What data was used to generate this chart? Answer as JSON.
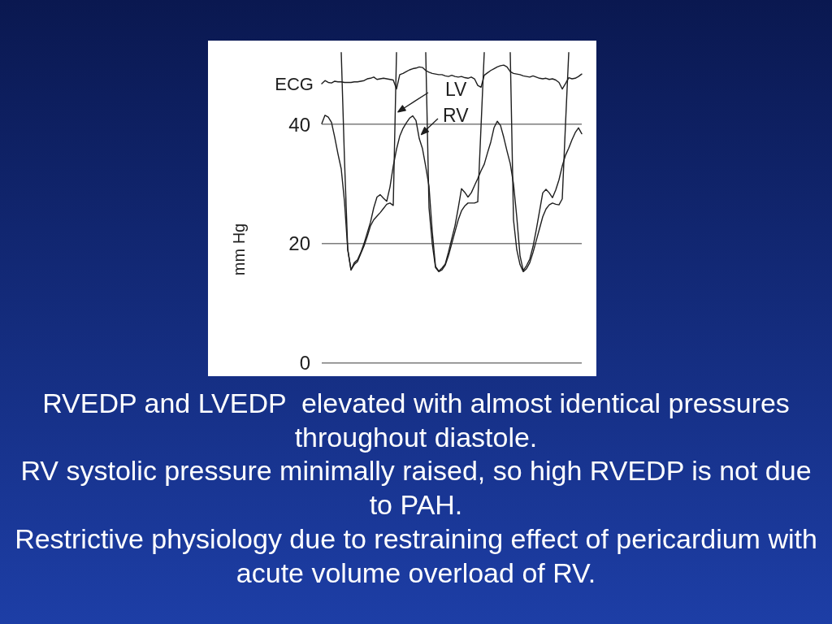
{
  "chart_data": {
    "type": "line",
    "ylabel": "mm Hg",
    "categories": [
      null,
      null,
      null,
      null,
      null,
      null,
      null,
      null,
      null,
      null,
      null,
      null,
      null,
      null,
      null,
      null,
      null,
      null,
      null,
      null,
      null,
      null,
      null,
      null,
      null,
      null,
      null,
      null,
      null,
      null,
      null,
      null,
      null,
      null,
      null,
      null,
      null,
      null,
      null,
      null,
      null,
      null,
      null,
      null,
      null,
      null,
      null,
      null,
      null,
      null,
      null,
      null,
      null,
      null,
      null,
      null,
      null,
      null,
      null,
      null,
      null,
      null,
      null,
      null,
      null,
      null,
      null,
      null,
      null,
      null,
      null,
      null,
      null,
      null,
      null,
      null,
      null,
      null,
      null,
      null,
      null
    ],
    "series": [
      {
        "name": "ECG",
        "color": "#1e1e1e",
        "values": [
          46.8,
          47.3,
          47.0,
          46.9,
          47.2,
          47.1,
          47.1,
          47.0,
          47.0,
          47.0,
          47.1,
          47.1,
          47.2,
          47.3,
          47.6,
          47.7,
          47.9,
          47.5,
          47.6,
          47.7,
          47.6,
          47.5,
          47.4,
          45.9,
          48.3,
          48.5,
          48.8,
          49.1,
          49.3,
          49.4,
          49.6,
          49.5,
          49.0,
          48.7,
          48.5,
          48.4,
          48.3,
          48.3,
          48.1,
          48.0,
          48.2,
          48.0,
          47.9,
          48.0,
          47.8,
          47.7,
          47.9,
          47.6,
          46.5,
          46.2,
          48.2,
          48.6,
          49.0,
          49.3,
          49.6,
          49.8,
          49.9,
          49.6,
          48.8,
          48.5,
          48.4,
          48.3,
          48.1,
          48.0,
          47.9,
          48.1,
          47.9,
          47.7,
          47.6,
          47.7,
          47.5,
          47.6,
          47.4,
          47.0,
          45.9,
          46.8,
          47.8,
          47.6,
          47.7,
          48.0,
          48.4
        ]
      },
      {
        "name": "LV",
        "color": "#1e1e1e",
        "values": [
          null,
          null,
          null,
          null,
          null,
          null,
          52,
          34,
          19,
          15.6,
          16.5,
          17.0,
          18.3,
          19.6,
          21.2,
          23.0,
          24.0,
          24.6,
          25.2,
          25.9,
          26.6,
          26.8,
          26.4,
          52,
          null,
          null,
          null,
          null,
          null,
          null,
          null,
          null,
          52,
          26,
          20,
          16.0,
          15.3,
          15.6,
          16.4,
          18.0,
          20.0,
          22.0,
          24.0,
          25.5,
          26.3,
          26.8,
          26.8,
          26.8,
          27.0,
          39.5,
          52,
          null,
          null,
          null,
          null,
          null,
          null,
          null,
          52,
          24,
          19,
          16.5,
          15.3,
          15.8,
          16.8,
          18.5,
          20.5,
          22.5,
          24.5,
          25.8,
          26.5,
          26.8,
          26.6,
          26.5,
          27.5,
          40,
          52,
          null,
          null,
          null,
          null
        ]
      },
      {
        "name": "RV",
        "color": "#1e1e1e",
        "values": [
          40.1,
          41.5,
          41.2,
          40.3,
          37.8,
          35.0,
          32.5,
          27.0,
          19.0,
          15.6,
          16.8,
          17.3,
          18.5,
          20.0,
          21.8,
          23.6,
          26.0,
          27.8,
          28.2,
          27.6,
          27.1,
          29.5,
          33.0,
          35.8,
          38.0,
          39.3,
          40.2,
          41.0,
          41.4,
          40.6,
          37.6,
          35.9,
          32.9,
          29.6,
          22.0,
          16.2,
          15.4,
          15.9,
          16.6,
          18.6,
          20.8,
          23.0,
          26.0,
          29.2,
          28.6,
          27.8,
          28.5,
          29.7,
          30.9,
          32.2,
          33.3,
          35.2,
          37.0,
          39.4,
          40.5,
          39.8,
          37.8,
          35.5,
          33.4,
          30.0,
          24.5,
          18.0,
          15.5,
          16.3,
          17.4,
          19.5,
          22.3,
          25.4,
          28.5,
          29.1,
          28.5,
          27.7,
          29.0,
          30.7,
          33.0,
          34.8,
          36.0,
          37.4,
          38.6,
          39.4,
          38.4
        ]
      }
    ],
    "ylim": [
      -2.2,
      54
    ],
    "yticks": [
      0,
      20,
      40
    ],
    "grid": "y",
    "legend": "top",
    "annotations": [
      "RVEDP and LVEDP  elevated with almost identical pressures throughout diastole.",
      "RV systolic pressure minimally raised, so high RVEDP is not due to PAH.",
      "Restrictive physiology due to restraining effect of pericardium with acute volume overload of RV."
    ]
  }
}
